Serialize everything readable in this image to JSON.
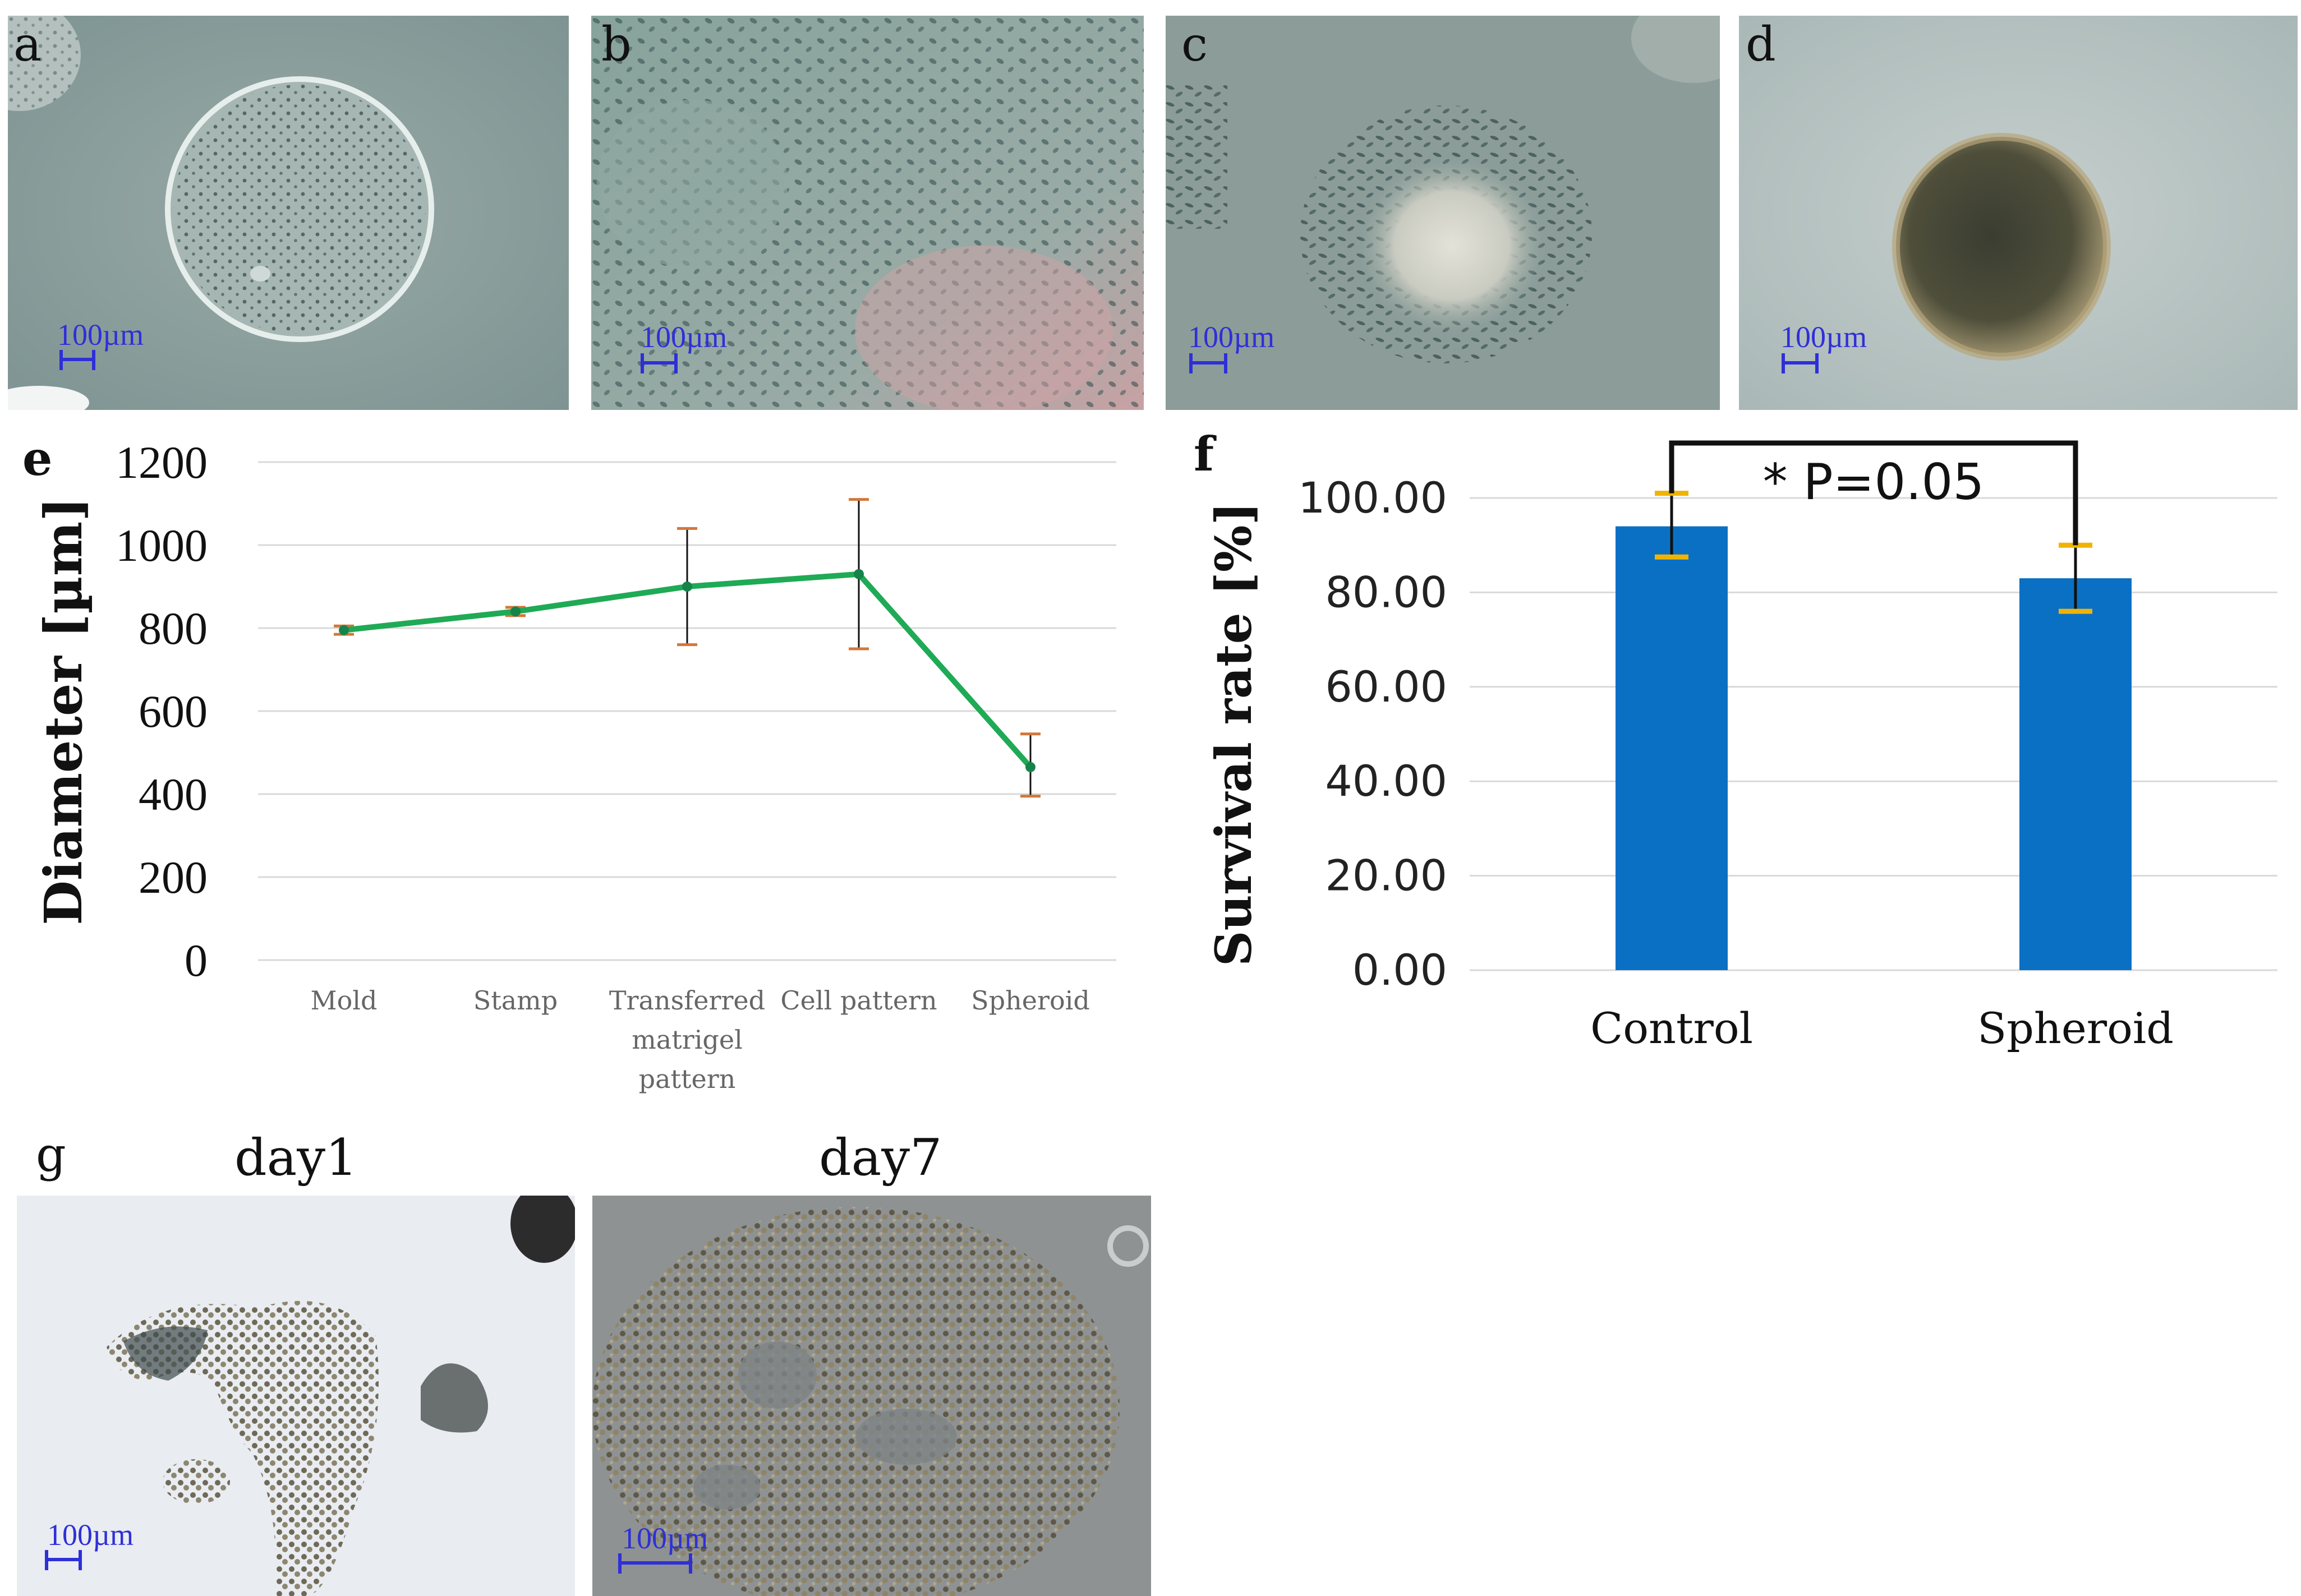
{
  "panels": {
    "a": {
      "letter": "a",
      "scale": "100µm"
    },
    "b": {
      "letter": "b",
      "scale": "100µm"
    },
    "c": {
      "letter": "c",
      "scale": "100µm"
    },
    "d": {
      "letter": "d",
      "scale": "100µm"
    },
    "e": {
      "letter": "e"
    },
    "f": {
      "letter": "f"
    },
    "g": {
      "letter": "g",
      "day1_label": "day1",
      "day7_label": "day7",
      "scale1": "100µm",
      "scale7": "100µm"
    }
  },
  "chart_data": [
    {
      "type": "line",
      "categories": [
        "Mold",
        "Stamp",
        "Transferred matrigel pattern",
        "Cell pattern",
        "Spheroid"
      ],
      "category_lines": [
        [
          "Mold"
        ],
        [
          "Stamp"
        ],
        [
          "Transferred",
          "matrigel",
          "pattern"
        ],
        [
          "Cell pattern"
        ],
        [
          "Spheroid"
        ]
      ],
      "values": [
        795,
        840,
        900,
        930,
        465
      ],
      "error_low": [
        785,
        830,
        760,
        750,
        395
      ],
      "error_high": [
        805,
        850,
        1040,
        1110,
        545
      ],
      "ylabel": "Diameter [µm]",
      "ylim": [
        0,
        1200
      ],
      "yticks": [
        "0",
        "200",
        "400",
        "600",
        "800",
        "1000",
        "1200"
      ],
      "grid": true,
      "line_color": "#1faa55",
      "errorbar_cap_color": "#d2773a"
    },
    {
      "type": "bar",
      "categories": [
        "Control",
        "Spheroid"
      ],
      "values": [
        94,
        83
      ],
      "error_low": [
        87.5,
        76
      ],
      "error_high": [
        101,
        90
      ],
      "ylabel": "Survival rate [%]",
      "ylim": [
        0,
        100
      ],
      "yticks": [
        "0.00",
        "20.00",
        "40.00",
        "60.00",
        "80.00",
        "100.00"
      ],
      "grid": true,
      "bar_color": "#0a70c4",
      "errorbar_cap_color": "#f0b400",
      "annotation": "* P=0.05"
    }
  ]
}
